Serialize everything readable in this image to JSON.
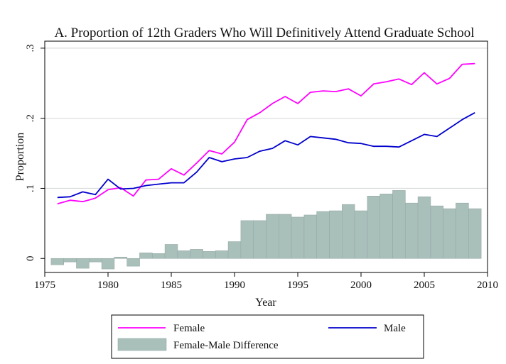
{
  "chart_data": {
    "type": "line",
    "title": "A. Proportion of 12th Graders Who Will Definitively Attend Graduate School",
    "xlabel": "Year",
    "ylabel": "Proportion",
    "xlim": [
      1975,
      2010
    ],
    "ylim": [
      -0.02,
      0.31
    ],
    "x_ticks": [
      1975,
      1980,
      1985,
      1990,
      1995,
      2000,
      2005,
      2010
    ],
    "y_ticks": [
      0,
      0.1,
      0.2,
      0.3
    ],
    "y_tick_labels": [
      "0",
      ".1",
      ".2",
      ".3"
    ],
    "grid": "horizontal",
    "legend_position": "bottom",
    "x": [
      1976,
      1977,
      1978,
      1979,
      1980,
      1981,
      1982,
      1983,
      1984,
      1985,
      1986,
      1987,
      1988,
      1989,
      1990,
      1991,
      1992,
      1993,
      1994,
      1995,
      1996,
      1997,
      1998,
      1999,
      2000,
      2001,
      2002,
      2003,
      2004,
      2005,
      2006,
      2007,
      2008,
      2009
    ],
    "series": [
      {
        "name": "Female",
        "type": "line",
        "color": "#ff00ff",
        "values": [
          0.078,
          0.083,
          0.081,
          0.086,
          0.098,
          0.101,
          0.089,
          0.112,
          0.113,
          0.128,
          0.119,
          0.136,
          0.154,
          0.149,
          0.166,
          0.198,
          0.208,
          0.221,
          0.231,
          0.221,
          0.237,
          0.239,
          0.238,
          0.242,
          0.232,
          0.249,
          0.252,
          0.256,
          0.248,
          0.265,
          0.249,
          0.257,
          0.277,
          0.278
        ]
      },
      {
        "name": "Male",
        "type": "line",
        "color": "#0000cc",
        "values": [
          0.087,
          0.088,
          0.095,
          0.091,
          0.113,
          0.099,
          0.1,
          0.104,
          0.106,
          0.108,
          0.108,
          0.123,
          0.144,
          0.138,
          0.142,
          0.144,
          0.153,
          0.157,
          0.168,
          0.162,
          0.174,
          0.172,
          0.17,
          0.165,
          0.164,
          0.16,
          0.16,
          0.159,
          0.168,
          0.177,
          0.174,
          0.186,
          0.198,
          0.208
        ]
      },
      {
        "name": "Female-Male Difference",
        "type": "bar",
        "color": "#a9bfba",
        "values": [
          -0.009,
          -0.005,
          -0.014,
          -0.005,
          -0.015,
          0.002,
          -0.011,
          0.008,
          0.007,
          0.02,
          0.011,
          0.013,
          0.01,
          0.011,
          0.024,
          0.054,
          0.054,
          0.063,
          0.063,
          0.059,
          0.062,
          0.067,
          0.068,
          0.077,
          0.068,
          0.089,
          0.092,
          0.097,
          0.079,
          0.088,
          0.075,
          0.071,
          0.079,
          0.071
        ]
      }
    ]
  }
}
